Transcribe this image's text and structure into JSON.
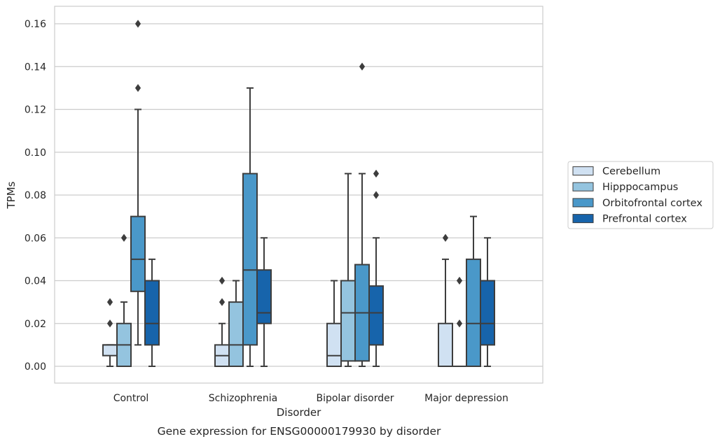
{
  "caption": "Gene expression for ENSG00000179930 by disorder",
  "colors": {
    "grid": "#cccccc",
    "frame": "#cccccc",
    "stroke": "#3d3d3d",
    "background": "#ffffff"
  },
  "chart_data": {
    "type": "box",
    "xlabel": "Disorder",
    "ylabel": "TPMs",
    "ylim": [
      -0.008,
      0.168
    ],
    "yticks": [
      0.0,
      0.02,
      0.04,
      0.06,
      0.08,
      0.1,
      0.12,
      0.14,
      0.16
    ],
    "ytick_labels": [
      "0.00",
      "0.02",
      "0.04",
      "0.06",
      "0.08",
      "0.10",
      "0.12",
      "0.14",
      "0.16"
    ],
    "grid": "horizontal",
    "legend_position": "outside-right",
    "categories": [
      "Control",
      "Schizophrenia",
      "Bipolar disorder",
      "Major depression"
    ],
    "series": [
      {
        "name": "Cerebellum",
        "color": "#d0e1f2",
        "boxes": [
          {
            "whisker_low": 0.0,
            "q1": 0.005,
            "median": 0.01,
            "q3": 0.01,
            "whisker_high": 0.01,
            "outliers": [
              0.02,
              0.03
            ]
          },
          {
            "whisker_low": 0.0,
            "q1": 0.0,
            "median": 0.005,
            "q3": 0.01,
            "whisker_high": 0.02,
            "outliers": [
              0.03,
              0.04
            ]
          },
          {
            "whisker_low": 0.0,
            "q1": 0.0,
            "median": 0.005,
            "q3": 0.02,
            "whisker_high": 0.04,
            "outliers": []
          },
          {
            "whisker_low": 0.0,
            "q1": 0.0,
            "median": 0.0,
            "q3": 0.02,
            "whisker_high": 0.05,
            "outliers": [
              0.06
            ]
          }
        ]
      },
      {
        "name": "Hipppocampus",
        "color": "#94c4df",
        "boxes": [
          {
            "whisker_low": 0.0,
            "q1": 0.0,
            "median": 0.01,
            "q3": 0.02,
            "whisker_high": 0.03,
            "outliers": [
              0.06
            ]
          },
          {
            "whisker_low": 0.0,
            "q1": 0.0,
            "median": 0.01,
            "q3": 0.03,
            "whisker_high": 0.04,
            "outliers": []
          },
          {
            "whisker_low": 0.0,
            "q1": 0.0025,
            "median": 0.025,
            "q3": 0.04,
            "whisker_high": 0.09,
            "outliers": []
          },
          {
            "whisker_low": 0.0,
            "q1": 0.0,
            "median": 0.0,
            "q3": 0.0,
            "whisker_high": 0.0,
            "outliers": [
              0.02,
              0.04
            ]
          }
        ]
      },
      {
        "name": "Orbitofrontal cortex",
        "color": "#4a98c9",
        "boxes": [
          {
            "whisker_low": 0.01,
            "q1": 0.035,
            "median": 0.05,
            "q3": 0.07,
            "whisker_high": 0.12,
            "outliers": [
              0.13,
              0.16
            ]
          },
          {
            "whisker_low": 0.0,
            "q1": 0.01,
            "median": 0.045,
            "q3": 0.09,
            "whisker_high": 0.13,
            "outliers": []
          },
          {
            "whisker_low": 0.0,
            "q1": 0.0025,
            "median": 0.025,
            "q3": 0.0475,
            "whisker_high": 0.09,
            "outliers": [
              0.14
            ]
          },
          {
            "whisker_low": 0.0,
            "q1": 0.0,
            "median": 0.02,
            "q3": 0.05,
            "whisker_high": 0.07,
            "outliers": []
          }
        ]
      },
      {
        "name": "Prefrontal cortex",
        "color": "#1764ab",
        "boxes": [
          {
            "whisker_low": 0.0,
            "q1": 0.01,
            "median": 0.02,
            "q3": 0.04,
            "whisker_high": 0.05,
            "outliers": []
          },
          {
            "whisker_low": 0.0,
            "q1": 0.02,
            "median": 0.025,
            "q3": 0.045,
            "whisker_high": 0.06,
            "outliers": []
          },
          {
            "whisker_low": 0.0,
            "q1": 0.01,
            "median": 0.025,
            "q3": 0.0375,
            "whisker_high": 0.06,
            "outliers": [
              0.08,
              0.09
            ]
          },
          {
            "whisker_low": 0.0,
            "q1": 0.01,
            "median": 0.02,
            "q3": 0.04,
            "whisker_high": 0.06,
            "outliers": []
          }
        ]
      }
    ]
  }
}
